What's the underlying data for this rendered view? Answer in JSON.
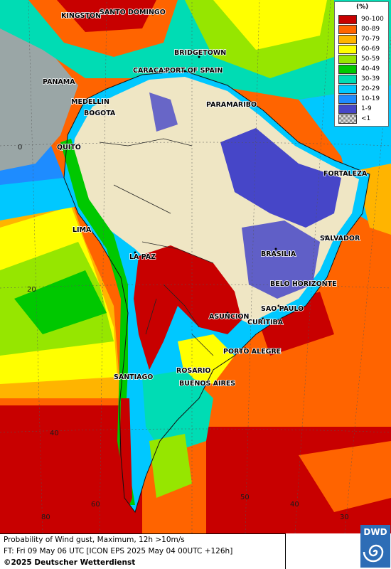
{
  "legend": {
    "unit": "(%)",
    "entries": [
      {
        "label": "90-100",
        "color": "#c80000"
      },
      {
        "label": "80-89",
        "color": "#ff6400"
      },
      {
        "label": "70-79",
        "color": "#ffb400"
      },
      {
        "label": "60-69",
        "color": "#ffff00"
      },
      {
        "label": "50-59",
        "color": "#96e600"
      },
      {
        "label": "40-49",
        "color": "#00c800"
      },
      {
        "label": "30-39",
        "color": "#00dcb4"
      },
      {
        "label": "20-29",
        "color": "#00c8ff"
      },
      {
        "label": "10-19",
        "color": "#1e8cff"
      },
      {
        "label": "1-9",
        "color": "#4646c8"
      },
      {
        "label": "<1",
        "color": "#c8c8c8"
      }
    ]
  },
  "cities": [
    "KINGSTON",
    "SANTO DOMINGO",
    "BRIDGETOWN",
    "CARACAS",
    "PORT OF SPAIN",
    "PANAMA",
    "MEDELLIN",
    "BOGOTA",
    "PARAMARIBO",
    "QUITO",
    "FORTALEZA",
    "LIMA",
    "SALVADOR",
    "LA PAZ",
    "BRASILIA",
    "BELO HORIZONTE",
    "SAO PAULO",
    "ASUNCION",
    "CURITIBA",
    "PORTO ALEGRE",
    "SANTIAGO",
    "ROSARIO",
    "BUENOS AIRES"
  ],
  "grid_labels": [
    "0",
    "20",
    "40",
    "80",
    "60",
    "50",
    "40",
    "30"
  ],
  "footer": {
    "line1": "Probability of Wind gust, Maximum, 12h >10m/s",
    "line2": "FT: Fri 09 May 06 UTC [ICON EPS 2025 May 04 00UTC +126h]",
    "copyright": "©2025 Deutscher Wetterdienst"
  },
  "logo": "DWD",
  "colors": {
    "land_no_prob": "#efe6c4",
    "ocean_pacific_nw": "#9aa6a6"
  }
}
